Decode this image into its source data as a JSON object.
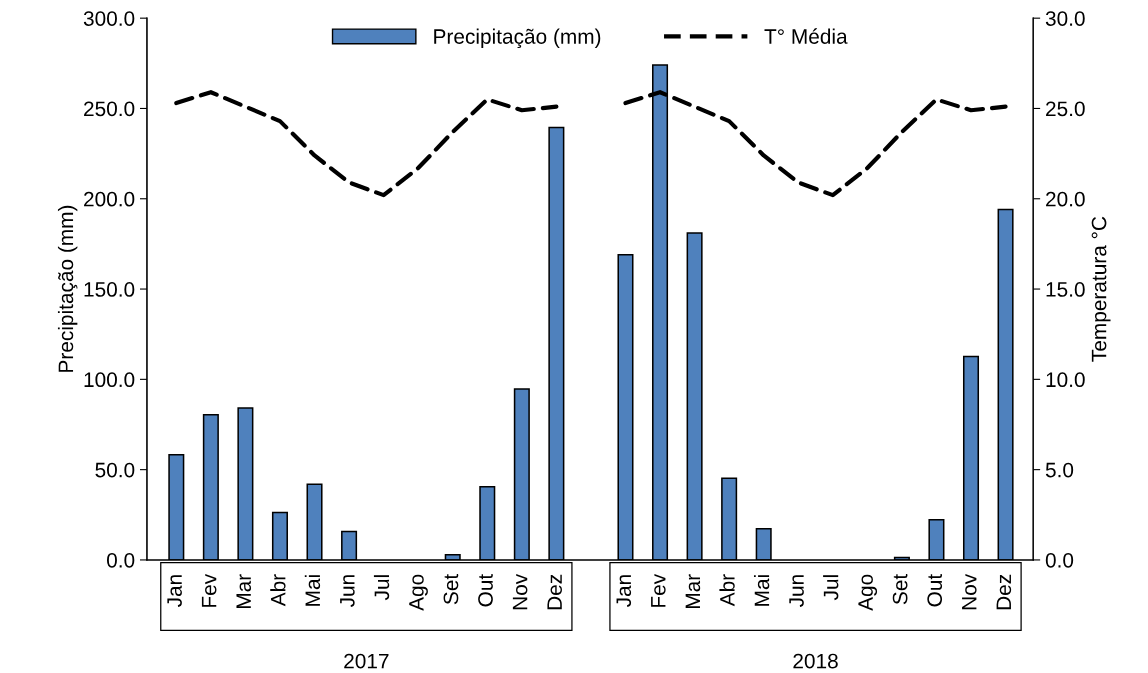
{
  "chart_data": {
    "type": "bar",
    "ylabel": "Precipitação (mm)",
    "y2label": "Temperatura °C",
    "categories": [
      "Jan",
      "Fev",
      "Mar",
      "Abr",
      "Mai",
      "Jun",
      "Jul",
      "Ago",
      "Set",
      "Out",
      "Nov",
      "Dez",
      null,
      "Jan",
      "Fev",
      "Mar",
      "Abr",
      "Mai",
      "Jun",
      "Jul",
      "Ago",
      "Set",
      "Out",
      "Nov",
      "Dez"
    ],
    "series": [
      {
        "name": "Precipitação (mm)",
        "color": "#4f81bd",
        "values": [
          58.2,
          80.4,
          84.1,
          26.3,
          41.9,
          15.8,
          0,
          0,
          2.9,
          40.5,
          94.6,
          239.4,
          null,
          169.0,
          274.1,
          181.0,
          45.2,
          17.3,
          0,
          0,
          0,
          1.4,
          22.2,
          112.7,
          194.1
        ]
      },
      {
        "name": "T° Média",
        "type": "line",
        "axis": "y2",
        "color": "#000000",
        "line_style": "dashed",
        "values": [
          25.3,
          25.9,
          25.1,
          24.3,
          22.4,
          20.9,
          20.2,
          21.7,
          23.7,
          25.5,
          24.9,
          25.1,
          null,
          25.3,
          25.9,
          25.1,
          24.3,
          22.4,
          20.9,
          20.2,
          21.7,
          23.7,
          25.5,
          24.9,
          25.1
        ]
      }
    ],
    "ylim": [
      0,
      300
    ],
    "yticks": [
      {
        "value": 0,
        "label": "0.0"
      },
      {
        "value": 50,
        "label": "50.0"
      },
      {
        "value": 100,
        "label": "100.0"
      },
      {
        "value": 150,
        "label": "150.0"
      },
      {
        "value": 200,
        "label": "200.0"
      },
      {
        "value": 250,
        "label": "250.0"
      },
      {
        "value": 300,
        "label": "300.0"
      }
    ],
    "y2lim": [
      0,
      30
    ],
    "y2ticks": [
      {
        "value": 0,
        "label": "0.0"
      },
      {
        "value": 5,
        "label": "5.0"
      },
      {
        "value": 10,
        "label": "10.0"
      },
      {
        "value": 15,
        "label": "15.0"
      },
      {
        "value": 20,
        "label": "20.0"
      },
      {
        "value": 25,
        "label": "25.0"
      },
      {
        "value": 30,
        "label": "30.0"
      }
    ],
    "annotations": [
      "2017",
      "2018"
    ],
    "legend": "top",
    "grid": false,
    "marker": "none"
  }
}
